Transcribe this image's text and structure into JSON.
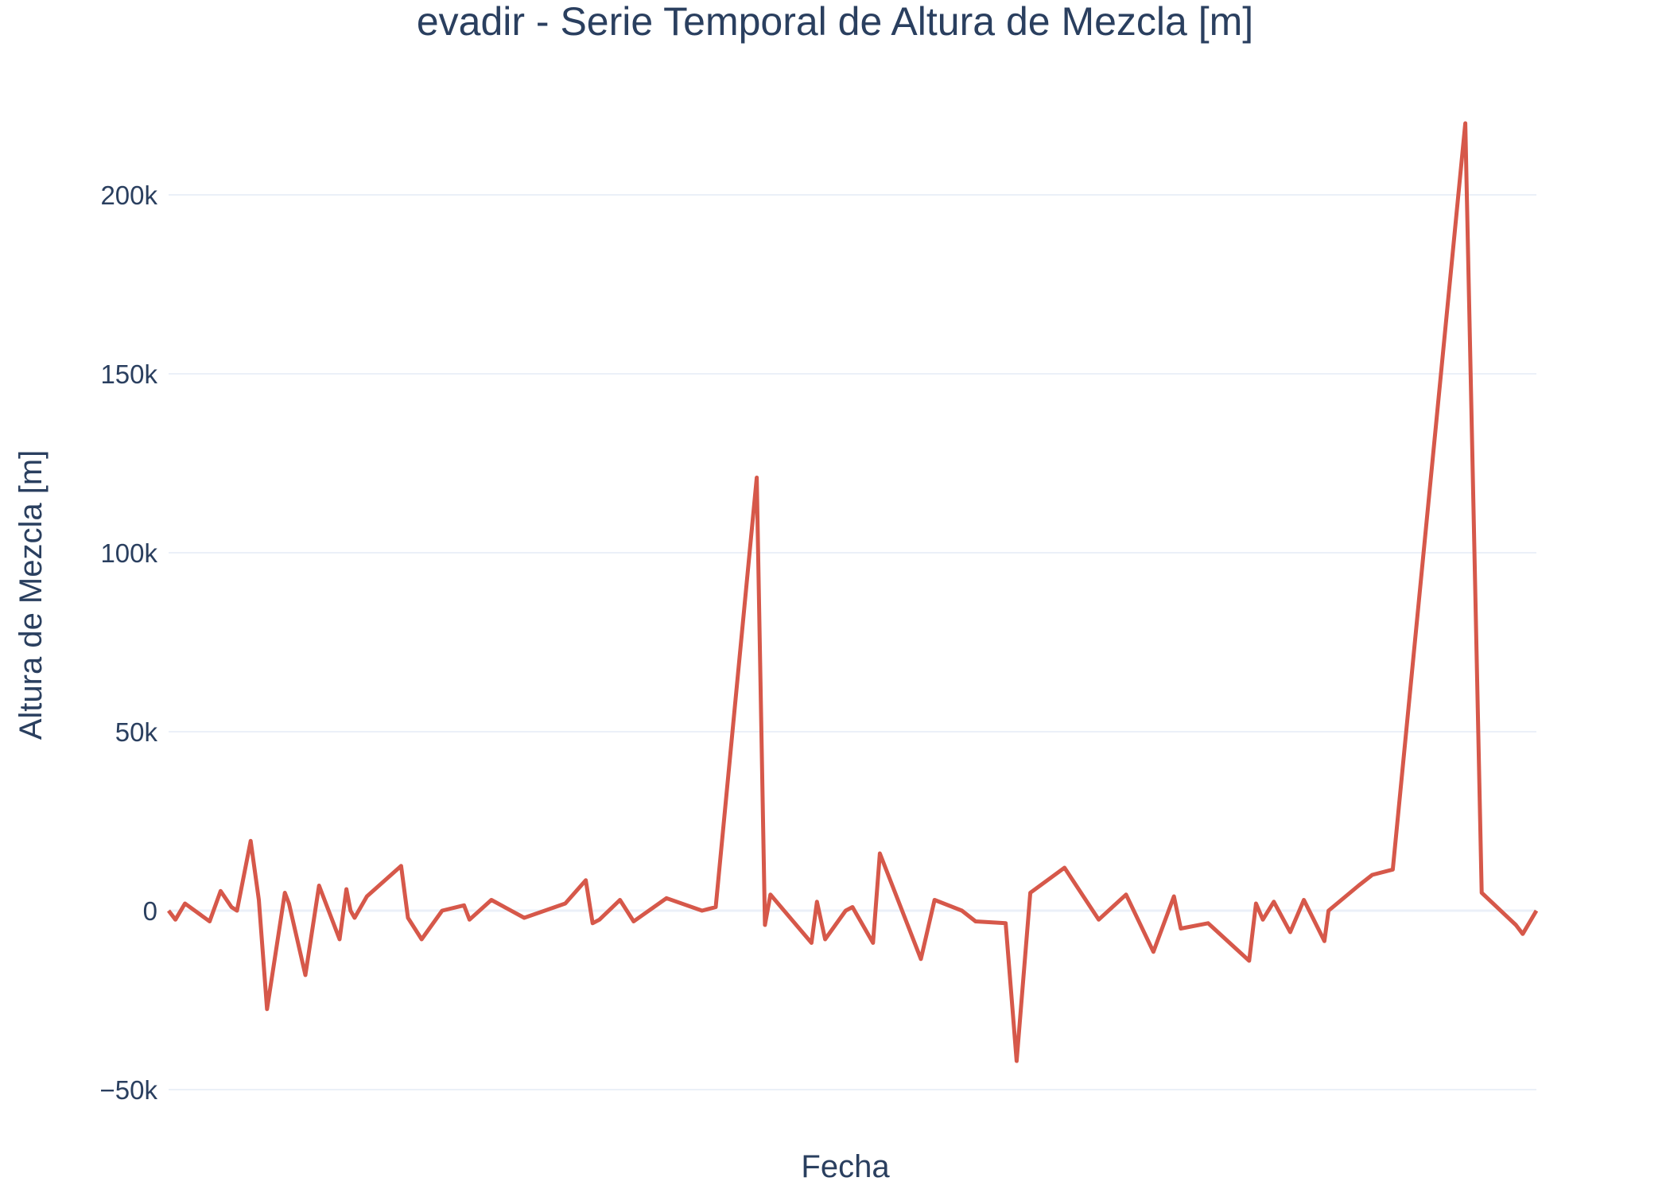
{
  "chart_data": {
    "type": "line",
    "title": "evadir - Serie Temporal de Altura de Mezcla [m]",
    "xlabel": "Fecha",
    "ylabel": "Altura de Mezcla [m]",
    "ylim": [
      -55000,
      225000
    ],
    "yticks": [
      -50000,
      0,
      50000,
      100000,
      150000,
      200000
    ],
    "ytick_labels": [
      "−50k",
      "0",
      "50k",
      "100k",
      "150k",
      "200k"
    ],
    "x_tick_labels_visible": false,
    "grid": true,
    "legend": "none",
    "series": [
      {
        "color": "#d6584a",
        "x": [
          0.0,
          0.005,
          0.012,
          0.03,
          0.038,
          0.046,
          0.05,
          0.06,
          0.066,
          0.072,
          0.085,
          0.088,
          0.1,
          0.11,
          0.125,
          0.13,
          0.133,
          0.136,
          0.145,
          0.17,
          0.175,
          0.185,
          0.2,
          0.216,
          0.22,
          0.236,
          0.26,
          0.29,
          0.305,
          0.31,
          0.315,
          0.33,
          0.34,
          0.364,
          0.39,
          0.4,
          0.43,
          0.436,
          0.44,
          0.47,
          0.474,
          0.48,
          0.495,
          0.5,
          0.515,
          0.52,
          0.55,
          0.56,
          0.58,
          0.59,
          0.612,
          0.62,
          0.63,
          0.655,
          0.68,
          0.7,
          0.72,
          0.735,
          0.74,
          0.76,
          0.79,
          0.795,
          0.8,
          0.808,
          0.82,
          0.83,
          0.845,
          0.848,
          0.87,
          0.88,
          0.895,
          0.948,
          0.96,
          0.985,
          0.99,
          1.0
        ],
        "y": [
          0,
          -2500,
          2000,
          -3000,
          5500,
          1000,
          0,
          19500,
          3000,
          -27500,
          5000,
          2000,
          -18000,
          7000,
          -8000,
          6000,
          0,
          -2000,
          4000,
          12500,
          -2000,
          -8000,
          0,
          1500,
          -2500,
          3000,
          -2000,
          2000,
          8500,
          -3500,
          -2500,
          3000,
          -3000,
          3500,
          0,
          1000,
          121000,
          -4000,
          4500,
          -9000,
          2500,
          -8000,
          0,
          1000,
          -9000,
          16000,
          -13500,
          3000,
          0,
          -3000,
          -3500,
          -42000,
          5000,
          12000,
          -2500,
          4500,
          -11500,
          4000,
          -5000,
          -3500,
          -14000,
          2000,
          -2500,
          2500,
          -6000,
          3000,
          -8500,
          0,
          7000,
          10000,
          11500,
          220000,
          5000,
          -4000,
          -6500,
          0
        ]
      }
    ]
  }
}
